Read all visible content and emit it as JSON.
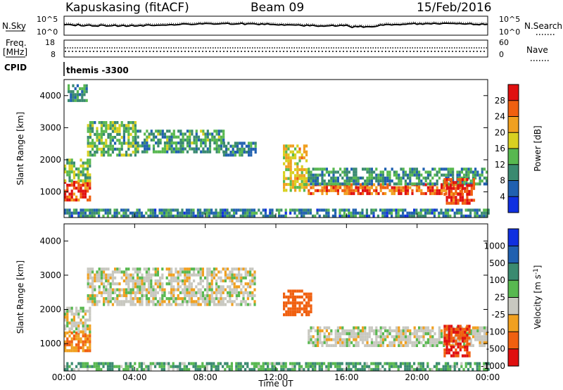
{
  "header": {
    "station": "Kapuskasing (fitACF)",
    "beam": "Beam 09",
    "date": "15/Feb/2016"
  },
  "top_panels": {
    "nsky_label": "N.Sky",
    "nsky_ticks": [
      "10^5",
      "10^0"
    ],
    "nsearch_label": "N.Search",
    "freq_label_1": "Freq.",
    "freq_label_2": "[MHz]",
    "freq_ticks": [
      "18",
      "8"
    ],
    "nave_label": "Nave",
    "nave_ticks": [
      "60",
      "0"
    ],
    "right_nsky_ticks": [
      "10^5",
      "10^0"
    ],
    "cpid_label": "CPID",
    "cpid_text": "themis -3300"
  },
  "axes": {
    "ylabel": "Slant Range [km]",
    "yticks": [
      1000,
      2000,
      3000,
      4000
    ],
    "ylim": [
      200,
      4500
    ],
    "xlabel": "Time UT",
    "xticks": [
      "00:00",
      "04:00",
      "08:00",
      "12:00",
      "16:00",
      "20:00",
      "00:00"
    ],
    "xlim_hours": [
      0,
      24
    ]
  },
  "colors": {
    "power": [
      "#1030e0",
      "#2060b0",
      "#3a8a70",
      "#58b850",
      "#d8d020",
      "#f0a020",
      "#f06010",
      "#e01010"
    ],
    "velocity": [
      "#1030e0",
      "#2060b0",
      "#3a8a70",
      "#58b850",
      "#c8c8c0",
      "#f0a020",
      "#f06010",
      "#e01010"
    ],
    "ground": "#b8b8b0"
  },
  "chart_data": [
    {
      "type": "heatmap",
      "panel": "power",
      "colorbar_label": "Power [dB]",
      "colorbar_ticks": [
        "4",
        "8",
        "12",
        "16",
        "20",
        "24",
        "28"
      ],
      "clim": [
        0,
        30
      ],
      "regions": [
        {
          "t0": 0.0,
          "t1": 1.5,
          "r0": 700,
          "r1": 1300,
          "value": 26
        },
        {
          "t0": 0.0,
          "t1": 1.5,
          "r0": 1300,
          "r1": 2000,
          "value": 14
        },
        {
          "t0": 0.2,
          "t1": 1.3,
          "r0": 3800,
          "r1": 4300,
          "value": 10
        },
        {
          "t0": 1.3,
          "t1": 4.0,
          "r0": 2100,
          "r1": 3200,
          "value": 12
        },
        {
          "t0": 4.0,
          "t1": 9.0,
          "r0": 2200,
          "r1": 2900,
          "value": 11
        },
        {
          "t0": 9.0,
          "t1": 10.8,
          "r0": 2100,
          "r1": 2500,
          "value": 9
        },
        {
          "t0": 12.4,
          "t1": 13.8,
          "r0": 1000,
          "r1": 2400,
          "value": 18
        },
        {
          "t0": 13.8,
          "t1": 22.5,
          "r0": 900,
          "r1": 1200,
          "value": 24
        },
        {
          "t0": 13.8,
          "t1": 24.0,
          "r0": 1200,
          "r1": 1700,
          "value": 10
        },
        {
          "t0": 21.5,
          "t1": 23.2,
          "r0": 600,
          "r1": 1400,
          "value": 27
        },
        {
          "t0": 0.0,
          "t1": 24.0,
          "r0": 200,
          "r1": 450,
          "value": 8
        }
      ]
    },
    {
      "type": "heatmap",
      "panel": "velocity",
      "colorbar_label": "Velocity [m s^-1]",
      "colorbar_ticks": [
        "1000",
        "500",
        "100",
        "25",
        "-25",
        "-100",
        "-500",
        "-1000"
      ],
      "clim": [
        -1000,
        1000
      ],
      "regions": [
        {
          "t0": 0.0,
          "t1": 1.5,
          "r0": 750,
          "r1": 1300,
          "value": -100
        },
        {
          "t0": 0.0,
          "t1": 1.5,
          "r0": 1300,
          "r1": 2000,
          "value": 0
        },
        {
          "t0": 1.3,
          "t1": 10.8,
          "r0": 2100,
          "r1": 3200,
          "value": 0
        },
        {
          "t0": 12.4,
          "t1": 14.0,
          "r0": 1800,
          "r1": 2500,
          "value": -300
        },
        {
          "t0": 13.8,
          "t1": 24.0,
          "r0": 900,
          "r1": 1500,
          "value": 0
        },
        {
          "t0": 21.5,
          "t1": 23.0,
          "r0": 600,
          "r1": 1500,
          "value": -500
        },
        {
          "t0": 0.0,
          "t1": 24.0,
          "r0": 200,
          "r1": 450,
          "value": 60
        }
      ]
    }
  ]
}
